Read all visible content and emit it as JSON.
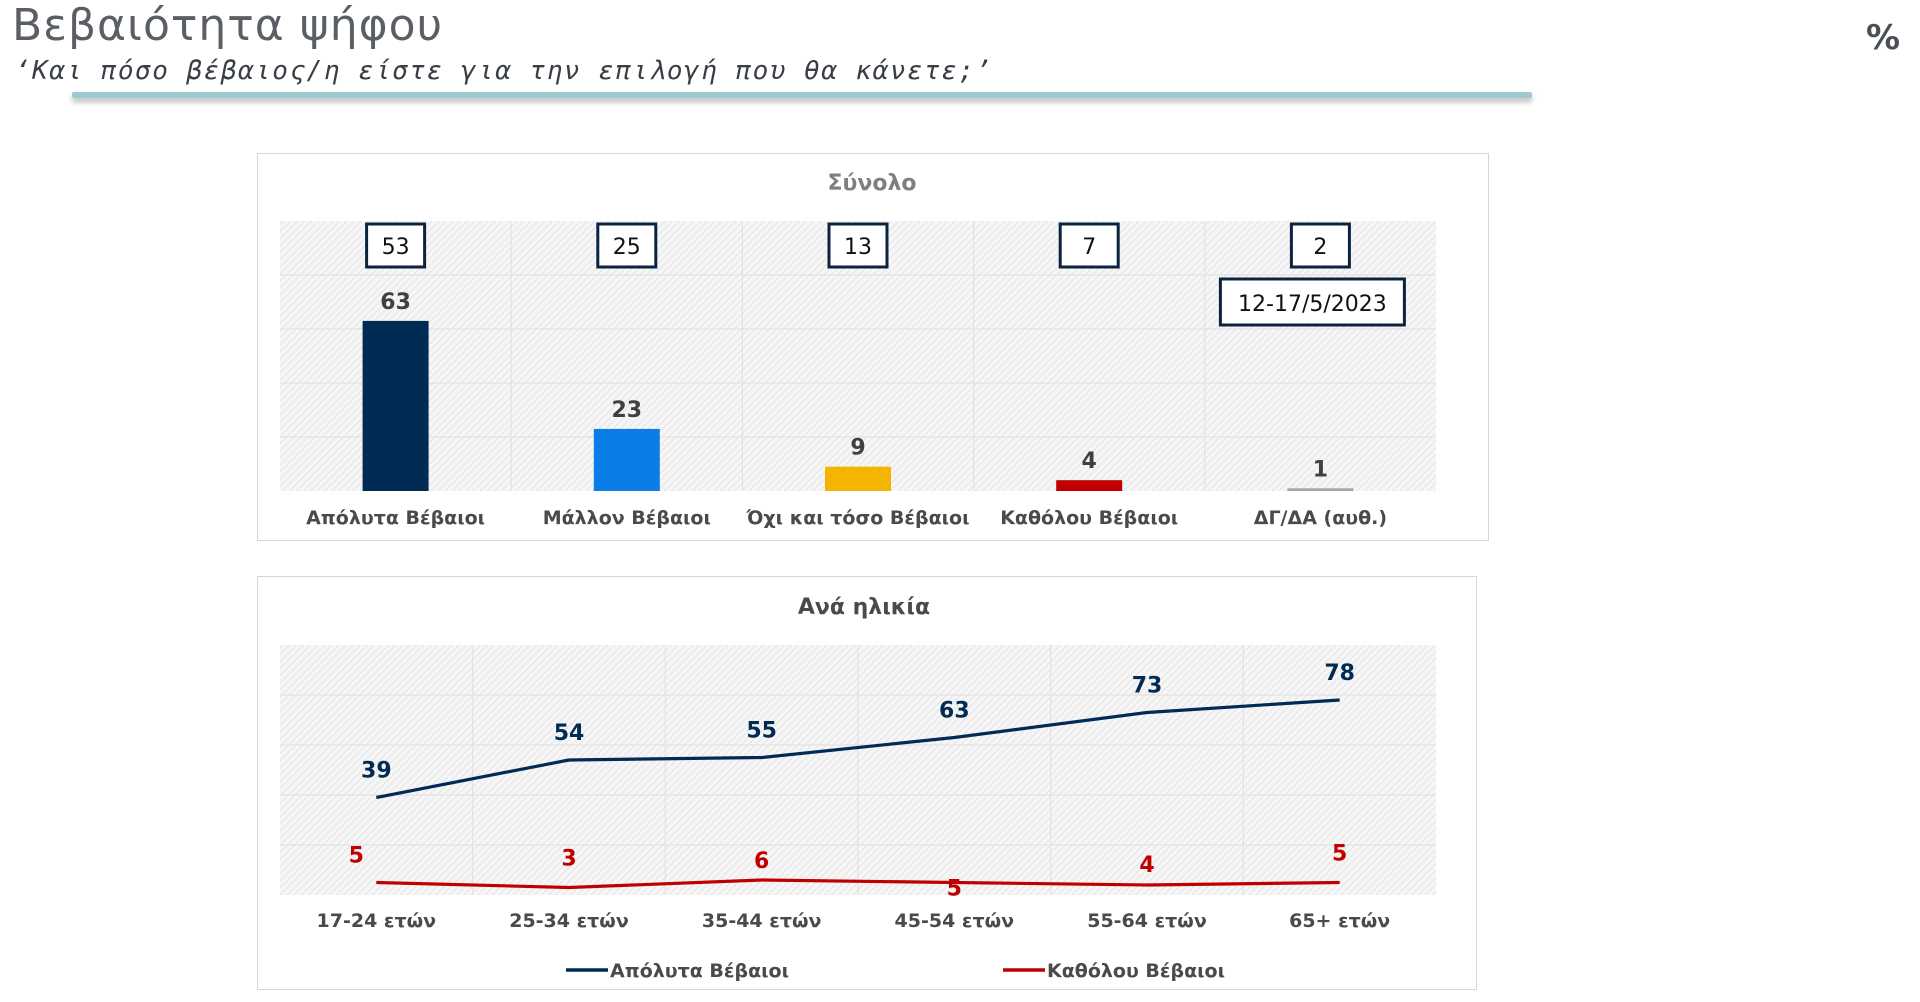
{
  "header": {
    "title": "Βεβαιότητα ψήφου",
    "subtitle": "‘Και πόσο βέβαιος/η είστε για την επιλογή που θα κάνετε;’",
    "percent_sign": "%"
  },
  "colors": {
    "navy": "#002b55",
    "blue": "#0a7ee6",
    "yellow": "#f5b400",
    "red": "#c00000",
    "grey": "#a6a6a6"
  },
  "chart_data": [
    {
      "type": "bar",
      "title": "Σύνολο",
      "categories": [
        "Απόλυτα Βέβαιοι",
        "Μάλλον Βέβαιοι",
        "Όχι και τόσο Βέβαιοι",
        "Καθόλου Βέβαιοι",
        "ΔΓ/ΔΑ (αυθ.)"
      ],
      "values": [
        63,
        23,
        9,
        4,
        1
      ],
      "previous_values": [
        53,
        25,
        13,
        7,
        2
      ],
      "comparison_label": "12-17/5/2023",
      "bar_colors": [
        "#002b55",
        "#0a7ee6",
        "#f5b400",
        "#c00000",
        "#a6a6a6"
      ],
      "ylim": [
        0,
        100
      ],
      "grid": true
    },
    {
      "type": "line",
      "title": "Ανά ηλικία",
      "categories": [
        "17-24 ετών",
        "25-34 ετών",
        "35-44 ετών",
        "45-54 ετών",
        "55-64 ετών",
        "65+ ετών"
      ],
      "series": [
        {
          "name": "Απόλυτα Βέβαιοι",
          "values": [
            39,
            54,
            55,
            63,
            73,
            78
          ],
          "color": "#002b55"
        },
        {
          "name": "Καθόλου Βέβαιοι",
          "values": [
            5,
            3,
            6,
            5,
            4,
            5
          ],
          "color": "#c00000"
        }
      ],
      "ylim": [
        0,
        100
      ],
      "grid": true,
      "legend": "bottom"
    }
  ]
}
